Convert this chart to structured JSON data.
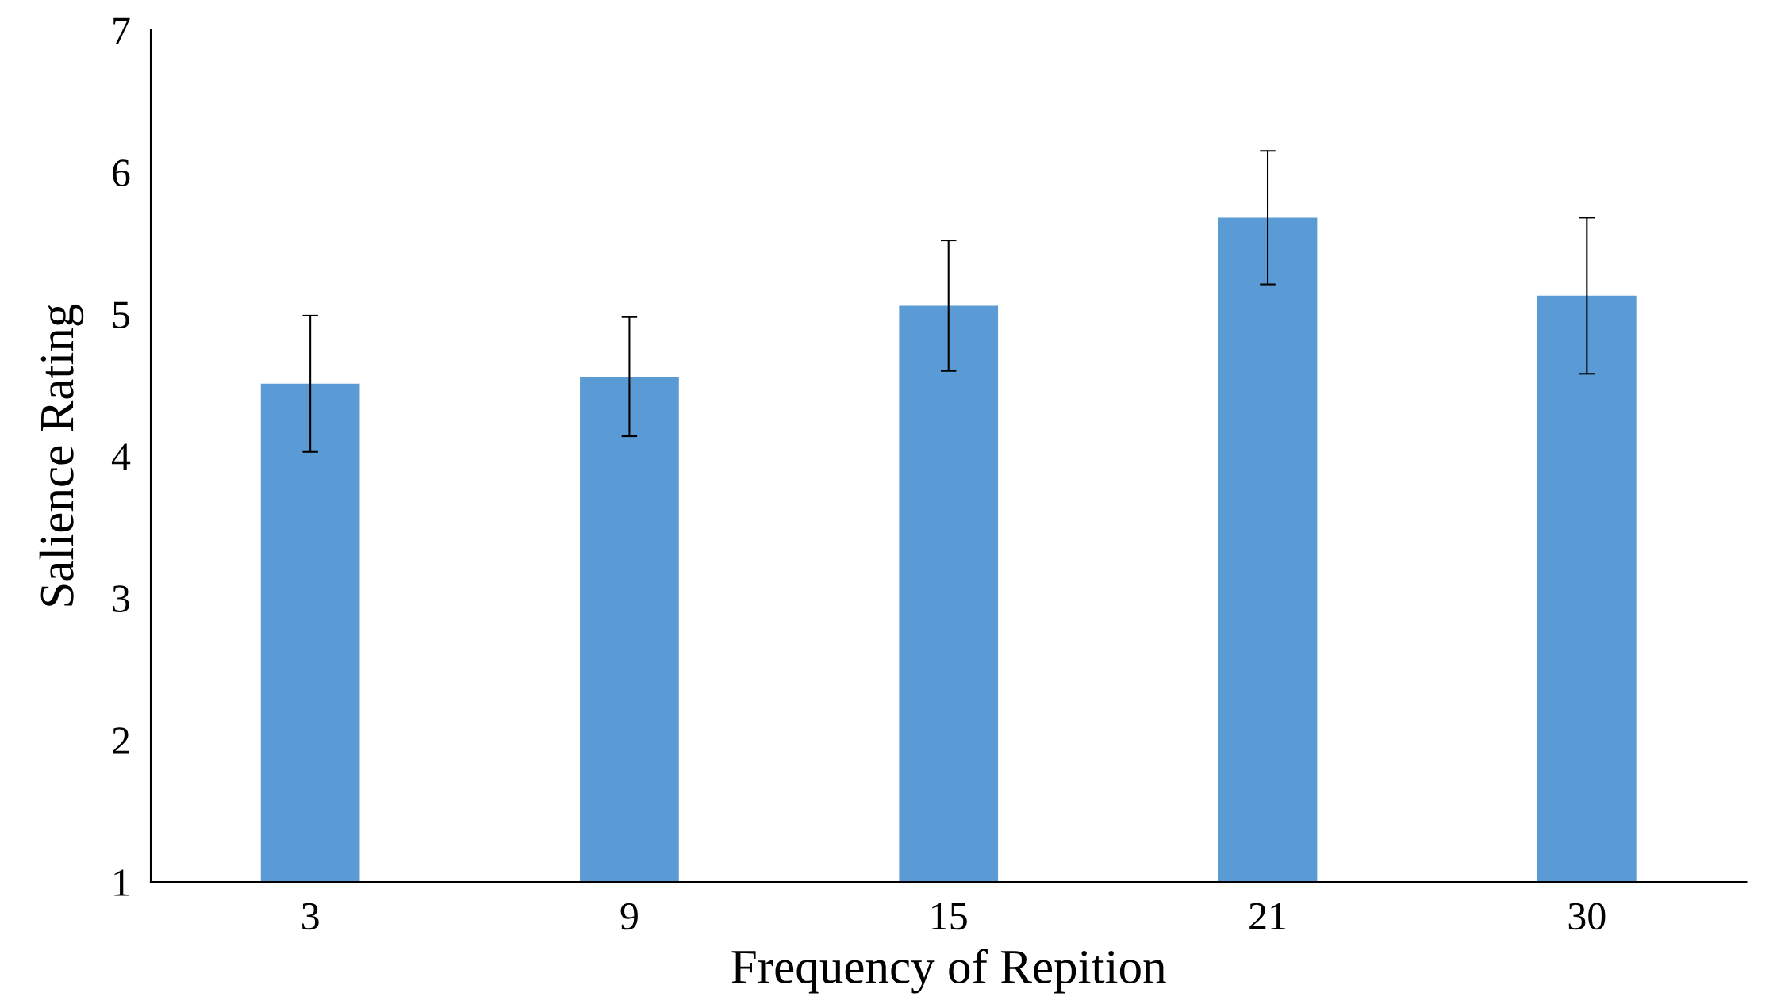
{
  "chart_data": {
    "type": "bar",
    "xlabel": "Frequency of Repition",
    "ylabel": "Salience Rating",
    "categories": [
      "3",
      "9",
      "15",
      "21",
      "30"
    ],
    "values": [
      4.51,
      4.56,
      5.06,
      5.68,
      5.13
    ],
    "errors": [
      0.48,
      0.42,
      0.46,
      0.47,
      0.55
    ],
    "color": "#5b9bd5",
    "ylim": [
      1,
      7
    ],
    "yticks": [
      1,
      2,
      3,
      4,
      5,
      6,
      7
    ],
    "grid": false,
    "legend": false
  }
}
